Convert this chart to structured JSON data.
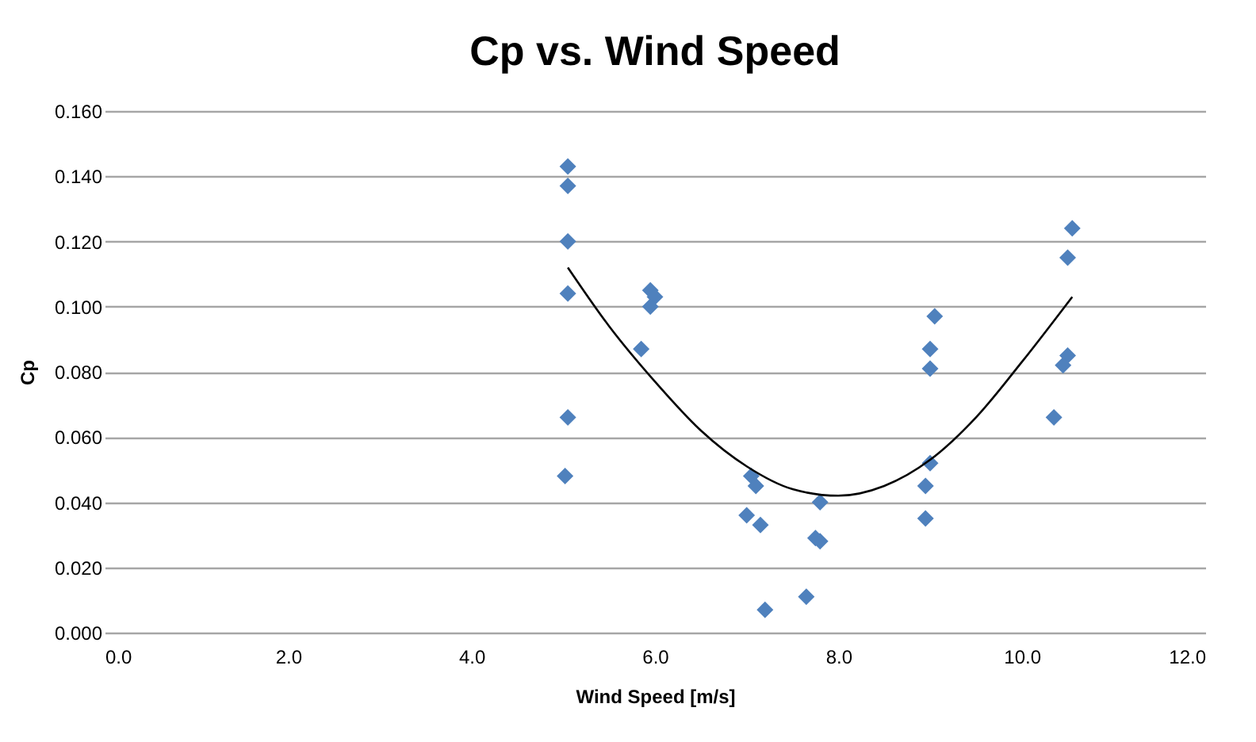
{
  "chart_data": {
    "type": "scatter",
    "title": "Cp vs. Wind Speed",
    "xlabel": "Wind Speed [m/s]",
    "ylabel": "Cp",
    "xlim": [
      0,
      12
    ],
    "xticks": [
      {
        "value": 0,
        "label": "0.0"
      },
      {
        "value": 2,
        "label": "2.0"
      },
      {
        "value": 4,
        "label": "4.0"
      },
      {
        "value": 6,
        "label": "6.0"
      },
      {
        "value": 8,
        "label": "8.0"
      },
      {
        "value": 10,
        "label": "10.0"
      },
      {
        "value": 12,
        "label": "12.0"
      }
    ],
    "ylim": [
      0,
      0.16
    ],
    "yticks": [
      {
        "value": 0,
        "label": "0.000"
      },
      {
        "value": 0.02,
        "label": "0.020"
      },
      {
        "value": 0.04,
        "label": "0.040"
      },
      {
        "value": 0.06,
        "label": "0.060"
      },
      {
        "value": 0.08,
        "label": "0.080"
      },
      {
        "value": 0.1,
        "label": "0.100"
      },
      {
        "value": 0.12,
        "label": "0.120"
      },
      {
        "value": 0.14,
        "label": "0.140"
      },
      {
        "value": 0.16,
        "label": "0.160"
      }
    ],
    "grid": "y",
    "series": [
      {
        "type": "scatter",
        "color": "#4f81bd",
        "marker": "diamond",
        "x": [
          5.05,
          5.05,
          5.05,
          5.05,
          5.05,
          5.02,
          5.95,
          6.0,
          5.95,
          5.85,
          7.05,
          7.1,
          7.0,
          7.15,
          7.2,
          7.8,
          7.75,
          7.8,
          7.65,
          9.05,
          9.0,
          9.0,
          9.0,
          8.95,
          8.95,
          10.55,
          10.5,
          10.5,
          10.45,
          10.35
        ],
        "values": [
          0.143,
          0.137,
          0.12,
          0.104,
          0.066,
          0.048,
          0.105,
          0.103,
          0.1,
          0.087,
          0.048,
          0.045,
          0.036,
          0.033,
          0.007,
          0.04,
          0.029,
          0.028,
          0.011,
          0.097,
          0.087,
          0.081,
          0.052,
          0.045,
          0.035,
          0.124,
          0.115,
          0.085,
          0.082,
          0.066
        ]
      },
      {
        "type": "line",
        "color": "#000000",
        "marker": "none",
        "line_style": "solid",
        "x": [
          5.05,
          5.5,
          6.0,
          6.5,
          7.0,
          7.5,
          8.0,
          8.5,
          9.0,
          9.5,
          10.0,
          10.55
        ],
        "values": [
          0.112,
          0.094,
          0.077,
          0.062,
          0.051,
          0.044,
          0.042,
          0.045,
          0.053,
          0.066,
          0.083,
          0.103
        ]
      }
    ]
  }
}
